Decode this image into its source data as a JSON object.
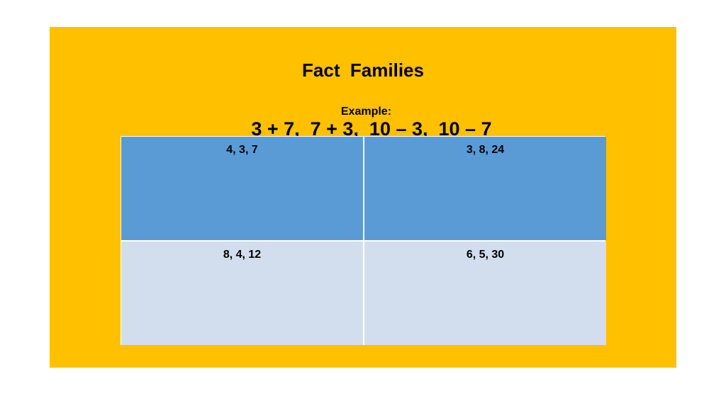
{
  "title": "Fact  Families",
  "example": {
    "label": "Example:",
    "text": "3 + 7,  7 + 3,  10 – 3,  10 – 7"
  },
  "table": {
    "rows": [
      [
        "4, 3, 7",
        "3, 8, 24"
      ],
      [
        "8, 4, 12",
        "6, 5, 30"
      ]
    ]
  },
  "colors": {
    "panel": "#FFC000",
    "row_dark": "#5B9BD5",
    "row_light": "#D2DEEE"
  }
}
